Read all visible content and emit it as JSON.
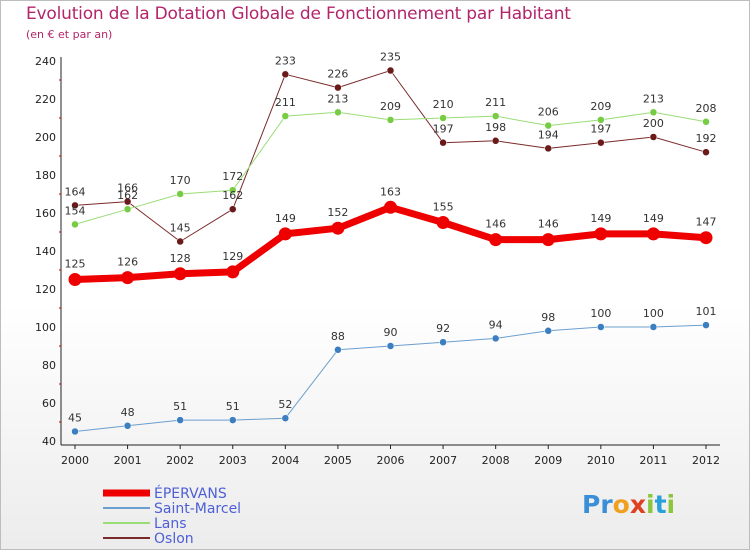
{
  "title": "Evolution de la Dotation Globale de Fonctionnement par Habitant",
  "subtitle": "(en € et par an)",
  "logo": {
    "letters": [
      "P",
      "r",
      "o",
      "x",
      "i",
      "t",
      "i"
    ],
    "colors": [
      "#3b8ed8",
      "#3b8ed8",
      "#f0a020",
      "#e04020",
      "#8cc63f",
      "#2aa0d8",
      "#8cc63f"
    ]
  },
  "chart_data": {
    "type": "line",
    "title": "Evolution de la Dotation Globale de Fonctionnement par Habitant",
    "subtitle": "(en € et par an)",
    "xlabel": "",
    "ylabel": "",
    "ylim": [
      40,
      240
    ],
    "yticks": [
      40,
      60,
      80,
      100,
      120,
      140,
      160,
      180,
      200,
      220,
      240
    ],
    "grid": false,
    "legend_position": "bottom-left",
    "x": [
      "2000",
      "2001",
      "2002",
      "2003",
      "2004",
      "2005",
      "2006",
      "2007",
      "2008",
      "2009",
      "2010",
      "2011",
      "2012"
    ],
    "series": [
      {
        "name": "Oslon",
        "color": "#7a2a2a",
        "marker": "#6b1a1a",
        "width": 1,
        "values": [
          164,
          166,
          145,
          162,
          233,
          226,
          235,
          197,
          198,
          194,
          197,
          200,
          192
        ]
      },
      {
        "name": "Lans",
        "color": "#99dd77",
        "marker": "#77cc44",
        "width": 1,
        "values": [
          154,
          162,
          170,
          172,
          211,
          213,
          209,
          210,
          211,
          206,
          209,
          213,
          208
        ]
      },
      {
        "name": "Saint-Marcel",
        "color": "#6b9fcf",
        "marker": "#3b7fc0",
        "width": 1,
        "values": [
          45,
          48,
          51,
          51,
          52,
          88,
          90,
          92,
          94,
          98,
          100,
          100,
          101
        ]
      },
      {
        "name": "ÉPERVANS",
        "color": "#ee0000",
        "marker": "#ee0000",
        "width": 7,
        "values": [
          125,
          126,
          128,
          129,
          149,
          152,
          163,
          155,
          146,
          146,
          149,
          149,
          147
        ]
      }
    ],
    "legend_order": [
      "ÉPERVANS",
      "Saint-Marcel",
      "Lans",
      "Oslon"
    ]
  }
}
